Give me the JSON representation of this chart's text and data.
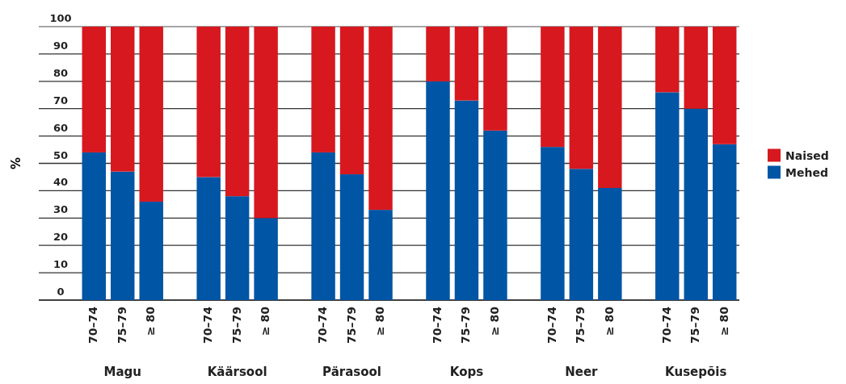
{
  "chart_data": {
    "type": "bar",
    "stacked": true,
    "ylabel": "%",
    "categories": [
      "70–74",
      "75–79",
      "≥ 80",
      null,
      "70–74",
      "75–79",
      "≥ 80",
      null,
      "70–74",
      "75–79",
      "≥ 80",
      null,
      "70–74",
      "75–79",
      "≥ 80",
      null,
      "70–74",
      "75–79",
      "≥ 80",
      null,
      "70–74",
      "75–79",
      "≥ 80"
    ],
    "series": [
      {
        "name": "Mehed",
        "color": "#0055a5",
        "values": [
          54,
          47,
          36,
          null,
          45,
          38,
          30,
          null,
          54,
          46,
          33,
          null,
          80,
          73,
          62,
          null,
          56,
          48,
          41,
          null,
          76,
          70,
          57
        ]
      },
      {
        "name": "Naised",
        "color": "#d7181f",
        "values": [
          46,
          53,
          64,
          null,
          55,
          62,
          70,
          null,
          46,
          54,
          67,
          null,
          20,
          27,
          38,
          null,
          44,
          52,
          59,
          null,
          24,
          30,
          43
        ]
      }
    ],
    "annotations": [
      "Magu",
      "Käärsool",
      "Pärasool",
      "Kops",
      "Neer",
      "Kusepõis"
    ],
    "ylim": [
      0,
      100
    ],
    "yticks": [
      0,
      10,
      20,
      30,
      40,
      50,
      60,
      70,
      80,
      90,
      100
    ],
    "grid": "y",
    "legend": "right"
  }
}
